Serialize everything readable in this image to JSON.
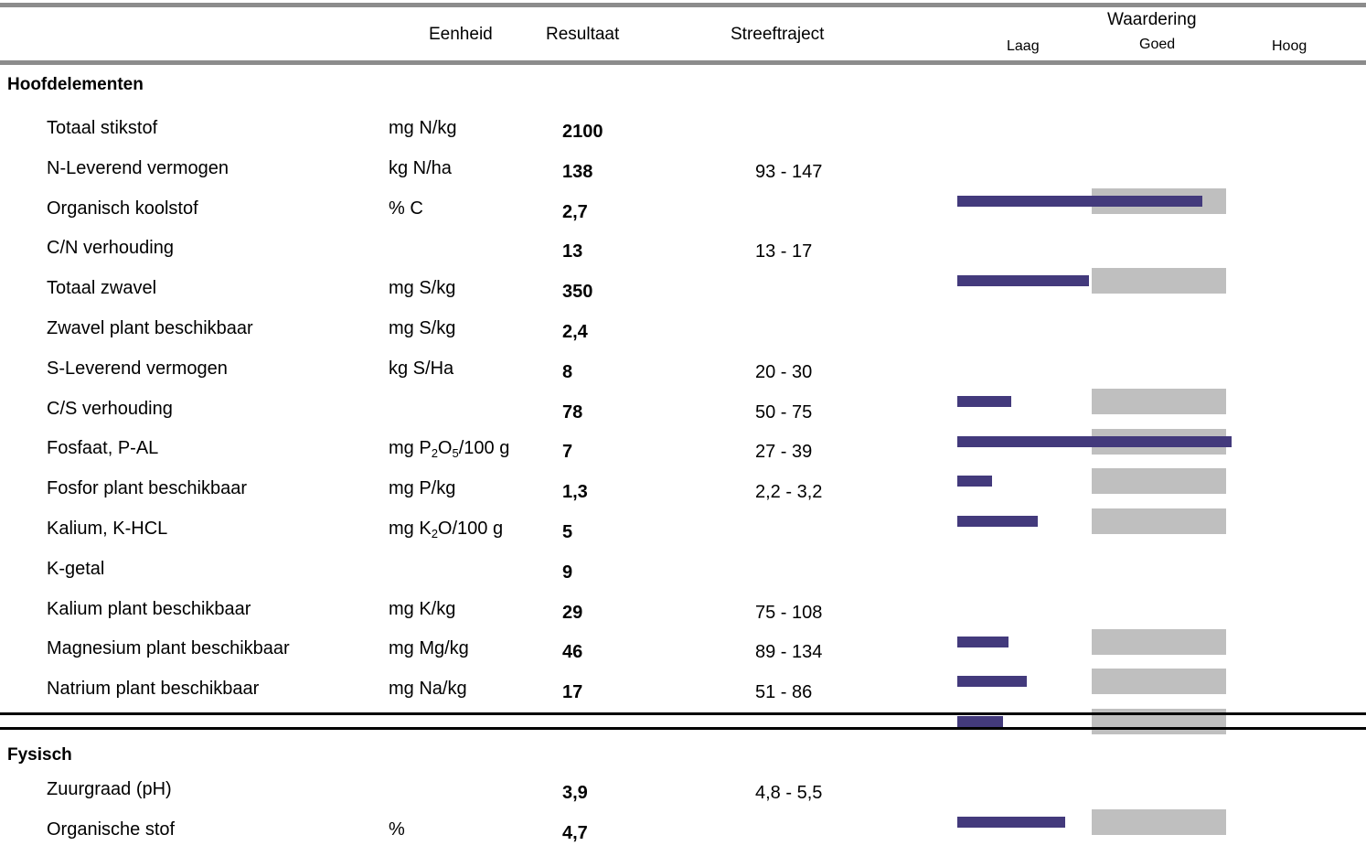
{
  "header": {
    "unit": "Eenheid",
    "result": "Resultaat",
    "range": "Streeftraject",
    "rating": "Waardering",
    "low": "Laag",
    "good": "Goed",
    "high": "Hoog"
  },
  "sections": [
    {
      "title": "Hoofdelementen",
      "rows": [
        {
          "name": "Totaal stikstof",
          "unit": "mg N/kg",
          "result": "2100",
          "range": "",
          "level": null
        },
        {
          "name": "N-Leverend vermogen",
          "unit": "kg N/ha",
          "result": "138",
          "range": "93 - 147",
          "level": 0.91
        },
        {
          "name": "Organisch koolstof",
          "unit": "% C",
          "result": "2,7",
          "range": "",
          "level": null
        },
        {
          "name": "C/N verhouding",
          "unit": "",
          "result": "13",
          "range": "13 - 17",
          "level": 0.49
        },
        {
          "name": "Totaal zwavel",
          "unit": "mg S/kg",
          "result": "350",
          "range": "",
          "level": null
        },
        {
          "name": "Zwavel plant beschikbaar",
          "unit": "mg S/kg",
          "result": "2,4",
          "range": "",
          "level": null
        },
        {
          "name": "S-Leverend vermogen",
          "unit": "kg S/Ha",
          "result": "8",
          "range": "20 - 30",
          "level": 0.2
        },
        {
          "name": "C/S verhouding",
          "unit": "",
          "result": "78",
          "range": "50 - 75",
          "level": 1.02
        },
        {
          "name": "Fosfaat, P-AL",
          "unit": "mg P₂O₅/100 g",
          "result": "7",
          "range": "27 - 39",
          "level": 0.13
        },
        {
          "name": "Fosfor plant beschikbaar",
          "unit": "mg P/kg",
          "result": "1,3",
          "range": "2,2 - 3,2",
          "level": 0.3
        },
        {
          "name": "Kalium, K-HCL",
          "unit": "mg K₂O/100 g",
          "result": "5",
          "range": "",
          "level": null
        },
        {
          "name": "K-getal",
          "unit": "",
          "result": "9",
          "range": "",
          "level": null
        },
        {
          "name": "Kalium plant beschikbaar",
          "unit": "mg K/kg",
          "result": "29",
          "range": "75 - 108",
          "level": 0.19
        },
        {
          "name": "Magnesium plant beschikbaar",
          "unit": "mg Mg/kg",
          "result": "46",
          "range": "89 - 134",
          "level": 0.26
        },
        {
          "name": "Natrium plant beschikbaar",
          "unit": "mg Na/kg",
          "result": "17",
          "range": "51 - 86",
          "level": 0.17
        }
      ]
    },
    {
      "title": "Fysisch",
      "rows": [
        {
          "name": "Zuurgraad (pH)",
          "unit": "",
          "result": "3,9",
          "range": "4,8 - 5,5",
          "level": 0.4
        },
        {
          "name": "Organische stof",
          "unit": "%",
          "result": "4,7",
          "range": "",
          "level": null
        }
      ]
    }
  ],
  "colors": {
    "bar": "#433a7c",
    "good_zone": "#bfbfbf",
    "rule": "#808080"
  }
}
